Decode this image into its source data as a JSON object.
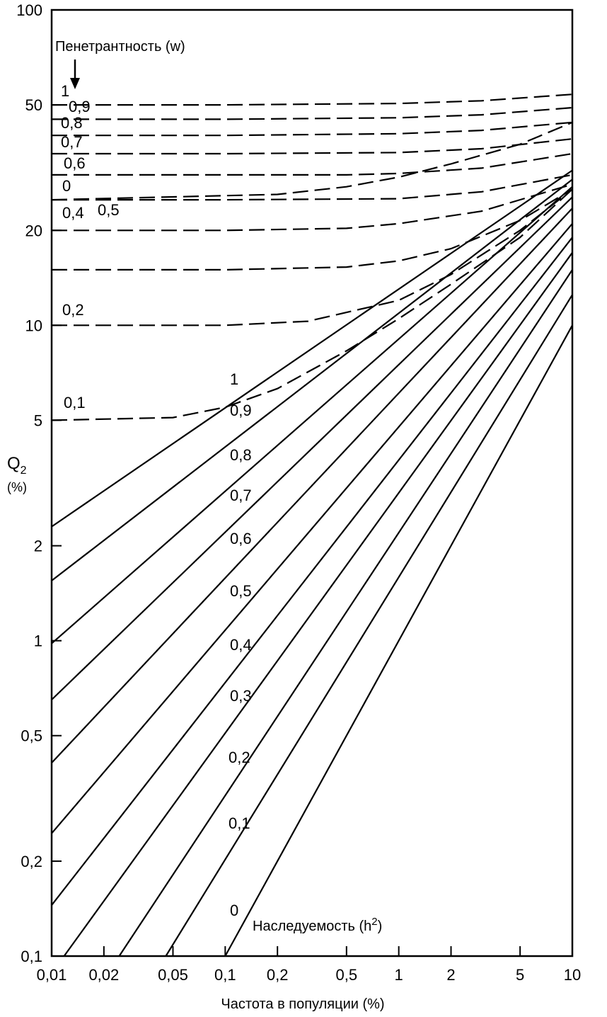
{
  "chart_data": {
    "type": "line",
    "xscale": "log",
    "yscale": "log",
    "xlim": [
      0.01,
      10
    ],
    "ylim": [
      0.1,
      100
    ],
    "xlabel": "Частота в популяции  (%)",
    "ylabel": "Q",
    "ylabel_sub": "2",
    "ylabel_unit": "(%)",
    "x_ticks": [
      {
        "value": 0.01,
        "label": "0,01"
      },
      {
        "value": 0.02,
        "label": "0,02"
      },
      {
        "value": 0.05,
        "label": "0,05"
      },
      {
        "value": 0.1,
        "label": "0,1"
      },
      {
        "value": 0.2,
        "label": "0,2"
      },
      {
        "value": 0.5,
        "label": "0,5"
      },
      {
        "value": 1,
        "label": "1"
      },
      {
        "value": 2,
        "label": "2"
      },
      {
        "value": 5,
        "label": "5"
      },
      {
        "value": 10,
        "label": "10"
      }
    ],
    "y_ticks": [
      {
        "value": 0.1,
        "label": "0,1"
      },
      {
        "value": 0.2,
        "label": "0,2"
      },
      {
        "value": 0.5,
        "label": "0,5"
      },
      {
        "value": 1,
        "label": "1"
      },
      {
        "value": 2,
        "label": "2"
      },
      {
        "value": 5,
        "label": "5"
      },
      {
        "value": 10,
        "label": "10"
      },
      {
        "value": 20,
        "label": "20"
      },
      {
        "value": 50,
        "label": "50"
      },
      {
        "value": 100,
        "label": "100"
      }
    ],
    "heritability_title": "Наследуемость  (h",
    "heritability_sup": "2",
    "heritability_close": ")",
    "penetrance_title": "Пенетрантность (w)",
    "heritability_series": [
      {
        "name": "1",
        "style": "solid",
        "points": [
          [
            0.01,
            2.3
          ],
          [
            10,
            31
          ]
        ]
      },
      {
        "name": "0,9",
        "style": "solid",
        "points": [
          [
            0.01,
            1.55
          ],
          [
            10,
            29
          ]
        ]
      },
      {
        "name": "0,8",
        "style": "solid",
        "points": [
          [
            0.01,
            0.98
          ],
          [
            10,
            27.5
          ]
        ]
      },
      {
        "name": "0,7",
        "style": "solid",
        "points": [
          [
            0.01,
            0.65
          ],
          [
            10,
            25.5
          ]
        ]
      },
      {
        "name": "0,6",
        "style": "solid",
        "points": [
          [
            0.01,
            0.41
          ],
          [
            10,
            23.5
          ]
        ]
      },
      {
        "name": "0,5",
        "style": "solid",
        "points": [
          [
            0.01,
            0.245
          ],
          [
            10,
            21
          ]
        ]
      },
      {
        "name": "0,4",
        "style": "solid",
        "points": [
          [
            0.01,
            0.145
          ],
          [
            10,
            19
          ]
        ]
      },
      {
        "name": "0,3",
        "style": "solid",
        "points": [
          [
            0.0118,
            0.1
          ],
          [
            10,
            17
          ]
        ]
      },
      {
        "name": "0,2",
        "style": "solid",
        "points": [
          [
            0.0245,
            0.1
          ],
          [
            10,
            15
          ]
        ]
      },
      {
        "name": "0,1",
        "style": "solid",
        "points": [
          [
            0.0455,
            0.1
          ],
          [
            10,
            12.5
          ]
        ]
      },
      {
        "name": "0",
        "style": "solid",
        "points": [
          [
            0.1,
            0.1
          ],
          [
            10,
            10
          ]
        ]
      }
    ],
    "penetrance_series": [
      {
        "name": "1",
        "style": "dashed",
        "points": [
          [
            0.01,
            50
          ],
          [
            0.1,
            50
          ],
          [
            1,
            50.5
          ],
          [
            3,
            51.5
          ],
          [
            10,
            54
          ]
        ]
      },
      {
        "name": "0,9",
        "style": "dashed",
        "points": [
          [
            0.01,
            45
          ],
          [
            0.1,
            45
          ],
          [
            1,
            45.5
          ],
          [
            3,
            46.5
          ],
          [
            10,
            49
          ]
        ]
      },
      {
        "name": "0,8",
        "style": "dashed",
        "points": [
          [
            0.01,
            40
          ],
          [
            0.1,
            40
          ],
          [
            1,
            40.5
          ],
          [
            3,
            41.5
          ],
          [
            10,
            44
          ]
        ]
      },
      {
        "name": "0,7",
        "style": "dashed",
        "points": [
          [
            0.01,
            35
          ],
          [
            0.1,
            35
          ],
          [
            1,
            35.3
          ],
          [
            3,
            36.3
          ],
          [
            10,
            39
          ]
        ]
      },
      {
        "name": "0,6",
        "style": "dashed",
        "points": [
          [
            0.01,
            30
          ],
          [
            0.1,
            30
          ],
          [
            0.5,
            30
          ],
          [
            1,
            30.3
          ],
          [
            3,
            31.5
          ],
          [
            10,
            35
          ]
        ]
      },
      {
        "name": "0",
        "style": "dashed",
        "points": [
          [
            0.01,
            25
          ],
          [
            0.2,
            26
          ],
          [
            0.5,
            27.5
          ],
          [
            1,
            29.5
          ],
          [
            2,
            32.5
          ],
          [
            5,
            37.5
          ],
          [
            10,
            44
          ]
        ]
      },
      {
        "name": "0,5",
        "style": "dashed",
        "points": [
          [
            0.01,
            25
          ],
          [
            0.1,
            25
          ],
          [
            1,
            25.2
          ],
          [
            3,
            26.5
          ],
          [
            10,
            30
          ]
        ]
      },
      {
        "name": "0,4",
        "style": "dashed",
        "points": [
          [
            0.01,
            20
          ],
          [
            0.1,
            20
          ],
          [
            0.5,
            20.3
          ],
          [
            1,
            21
          ],
          [
            3,
            23
          ],
          [
            10,
            28
          ]
        ]
      },
      {
        "name": "",
        "style": "dashed",
        "points": [
          [
            0.01,
            15
          ],
          [
            0.1,
            15
          ],
          [
            0.5,
            15.3
          ],
          [
            1,
            16
          ],
          [
            2,
            17.5
          ],
          [
            5,
            21.5
          ],
          [
            10,
            27
          ]
        ]
      },
      {
        "name": "0,2",
        "style": "dashed",
        "points": [
          [
            0.01,
            10
          ],
          [
            0.1,
            10
          ],
          [
            0.3,
            10.3
          ],
          [
            1,
            12
          ],
          [
            2,
            14.5
          ],
          [
            5,
            20
          ],
          [
            10,
            27
          ]
        ]
      },
      {
        "name": "0,1",
        "style": "dashed",
        "points": [
          [
            0.01,
            5
          ],
          [
            0.05,
            5.1
          ],
          [
            0.1,
            5.5
          ],
          [
            0.2,
            6.3
          ],
          [
            0.5,
            8.3
          ],
          [
            1,
            10.5
          ],
          [
            2,
            13.5
          ],
          [
            5,
            19
          ],
          [
            10,
            27
          ]
        ]
      }
    ]
  }
}
